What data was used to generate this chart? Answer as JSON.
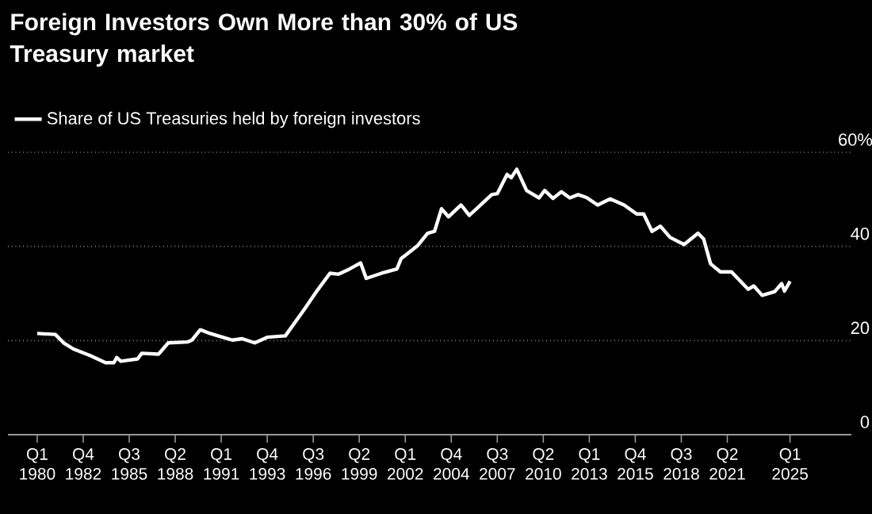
{
  "chart_data": {
    "type": "line",
    "title": "Foreign Investors Own More than 30% of US Treasury market",
    "x": [
      "1980-01",
      "1981-02",
      "1981-08",
      "1982-03",
      "1983-03",
      "1984-02",
      "1984-08",
      "1984-10",
      "1985-01",
      "1986-01",
      "1986-04",
      "1987-04",
      "1987-11",
      "1989-01",
      "1989-04",
      "1989-10",
      "1990-05",
      "1991-02",
      "1991-09",
      "1992-04",
      "1993-01",
      "1993-10",
      "1994-11",
      "1996-01",
      "1996-10",
      "1997-07",
      "1998-01",
      "1998-09",
      "1999-05",
      "1999-09",
      "2000-08",
      "2001-07",
      "2001-10",
      "2002-10",
      "2003-05",
      "2003-10",
      "2004-03",
      "2004-08",
      "2005-05",
      "2005-11",
      "2006-07",
      "2007-03",
      "2007-07",
      "2008-02",
      "2008-05",
      "2008-09",
      "2009-04",
      "2010-01",
      "2010-05",
      "2010-11",
      "2011-05",
      "2011-11",
      "2012-05",
      "2012-11",
      "2013-07",
      "2014-04",
      "2015-02",
      "2015-11",
      "2016-04",
      "2016-10",
      "2017-04",
      "2017-11",
      "2018-09",
      "2019-07",
      "2019-11",
      "2020-04",
      "2020-11",
      "2021-07",
      "2022-07",
      "2022-11",
      "2023-05",
      "2024-02",
      "2024-07",
      "2024-09",
      "2025-01"
    ],
    "series": [
      {
        "name": "Share of US Treasuries held by foreign investors",
        "color": "#ffffff",
        "values": [
          21.5,
          21.3,
          19.5,
          18.2,
          16.8,
          15.3,
          15.3,
          16.4,
          15.6,
          16.1,
          17.3,
          17.1,
          19.5,
          19.7,
          20.1,
          22.3,
          21.5,
          20.7,
          20.1,
          20.4,
          19.5,
          20.7,
          21.0,
          26.8,
          30.7,
          34.3,
          34.1,
          35.2,
          36.5,
          33.2,
          34.3,
          35.2,
          37.4,
          40.2,
          42.8,
          43.2,
          48.0,
          46.3,
          48.8,
          46.6,
          48.8,
          51.0,
          51.2,
          55.3,
          54.6,
          56.4,
          51.9,
          50.3,
          51.9,
          50.2,
          51.6,
          50.3,
          51.0,
          50.4,
          48.8,
          50.1,
          48.8,
          46.9,
          46.9,
          43.2,
          44.3,
          41.9,
          40.4,
          42.8,
          41.6,
          36.3,
          34.6,
          34.6,
          30.9,
          31.6,
          29.6,
          30.4,
          32.1,
          30.5,
          32.6
        ]
      }
    ],
    "xlim": [
      "1978-04",
      "2028-09"
    ],
    "xticks": [
      {
        "value": "1980-01",
        "label": "Q1 1980"
      },
      {
        "value": "1982-10",
        "label": "Q4 1982"
      },
      {
        "value": "1985-07",
        "label": "Q3 1985"
      },
      {
        "value": "1988-04",
        "label": "Q2 1988"
      },
      {
        "value": "1991-01",
        "label": "Q1 1991"
      },
      {
        "value": "1993-10",
        "label": "Q4 1993"
      },
      {
        "value": "1996-07",
        "label": "Q3 1996"
      },
      {
        "value": "1999-04",
        "label": "Q2 1999"
      },
      {
        "value": "2002-01",
        "label": "Q1 2002"
      },
      {
        "value": "2004-10",
        "label": "Q4 2004"
      },
      {
        "value": "2007-07",
        "label": "Q3 2007"
      },
      {
        "value": "2010-04",
        "label": "Q2 2010"
      },
      {
        "value": "2013-01",
        "label": "Q1 2013"
      },
      {
        "value": "2015-10",
        "label": "Q4 2015"
      },
      {
        "value": "2018-07",
        "label": "Q3 2018"
      },
      {
        "value": "2021-04",
        "label": "Q2 2021"
      },
      {
        "value": "2025-01",
        "label": "Q1 2025"
      }
    ],
    "ylim": [
      0,
      60
    ],
    "yticks": [
      0,
      20,
      40,
      {
        "value": 60,
        "label": "60%"
      }
    ],
    "grid": "y",
    "legend": "top left",
    "line_style": "solid",
    "marker": "none"
  }
}
